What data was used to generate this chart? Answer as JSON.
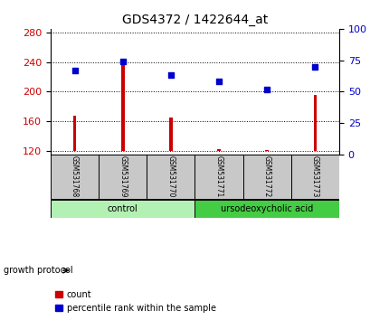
{
  "title": "GDS4372 / 1422644_at",
  "samples": [
    "GSM531768",
    "GSM531769",
    "GSM531770",
    "GSM531771",
    "GSM531772",
    "GSM531773"
  ],
  "counts": [
    168,
    244,
    165,
    122,
    121,
    196
  ],
  "percentiles": [
    67,
    74,
    63,
    58,
    52,
    70
  ],
  "ylim_left": [
    115,
    285
  ],
  "ylim_right": [
    0,
    100
  ],
  "yticks_left": [
    120,
    160,
    200,
    240,
    280
  ],
  "yticks_right": [
    0,
    25,
    50,
    75,
    100
  ],
  "bar_color": "#cc0000",
  "scatter_color": "#0000cc",
  "bar_bottom": 120,
  "groups": [
    {
      "label": "control",
      "color": "#b3f0b3",
      "start": 0,
      "end": 3
    },
    {
      "label": "ursodeoxycholic acid",
      "color": "#44cc44",
      "start": 3,
      "end": 6
    }
  ],
  "group_label": "growth protocol",
  "legend_count_label": "count",
  "legend_percentile_label": "percentile rank within the sample",
  "fig_bg": "#ffffff",
  "plot_bg": "#ffffff",
  "tick_label_color_left": "#cc0000",
  "tick_label_color_right": "#0000cc",
  "bar_width": 0.07,
  "sample_box_color": "#c8c8c8",
  "grid_linestyle": ":",
  "grid_color": "#000000"
}
